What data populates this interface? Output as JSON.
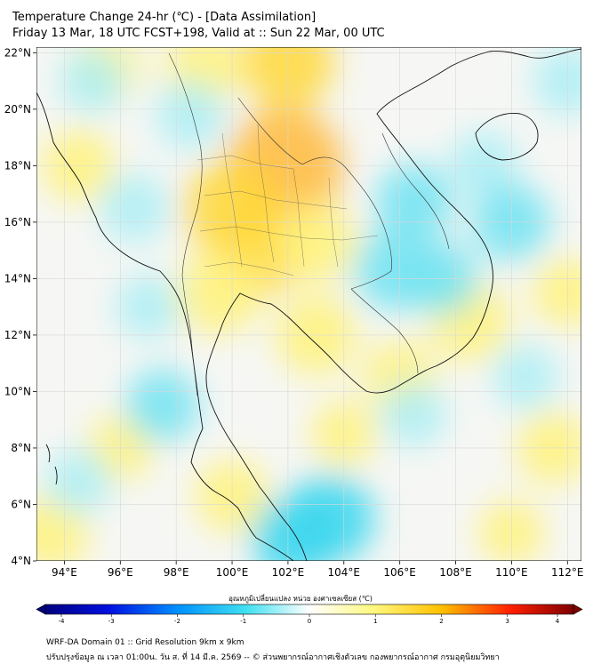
{
  "header": {
    "title_line1": "Temperature Change 24-hr (℃) - [Data Assimilation]",
    "title_line2": "Friday 13 Mar, 18 UTC FCST+198, Valid at :: Sun 22 Mar, 00 UTC"
  },
  "map": {
    "lon_range": [
      93,
      112.5
    ],
    "lat_range": [
      4,
      22.2
    ],
    "lat_ticks": [
      {
        "value": 22,
        "label": "22°N"
      },
      {
        "value": 20,
        "label": "20°N"
      },
      {
        "value": 18,
        "label": "18°N"
      },
      {
        "value": 16,
        "label": "16°N"
      },
      {
        "value": 14,
        "label": "14°N"
      },
      {
        "value": 12,
        "label": "12°N"
      },
      {
        "value": 10,
        "label": "10°N"
      },
      {
        "value": 8,
        "label": "8°N"
      },
      {
        "value": 6,
        "label": "6°N"
      },
      {
        "value": 4,
        "label": "4°N"
      }
    ],
    "lon_ticks": [
      {
        "value": 94,
        "label": "94°E"
      },
      {
        "value": 96,
        "label": "96°E"
      },
      {
        "value": 98,
        "label": "98°E"
      },
      {
        "value": 100,
        "label": "100°E"
      },
      {
        "value": 102,
        "label": "102°E"
      },
      {
        "value": 104,
        "label": "104°E"
      },
      {
        "value": 106,
        "label": "106°E"
      },
      {
        "value": 108,
        "label": "108°E"
      },
      {
        "value": 110,
        "label": "110°E"
      },
      {
        "value": 112,
        "label": "112°E"
      }
    ],
    "blobs": [
      {
        "lon": 101.9,
        "lat": 18.0,
        "value": 1.7
      },
      {
        "lon": 100.0,
        "lat": 16.5,
        "value": 1.2
      },
      {
        "lon": 101.0,
        "lat": 15.0,
        "value": 1.0
      },
      {
        "lon": 99.5,
        "lat": 13.5,
        "value": 0.9
      },
      {
        "lon": 103.0,
        "lat": 15.3,
        "value": 0.8
      },
      {
        "lon": 103.0,
        "lat": 12.0,
        "value": 0.8
      },
      {
        "lon": 102.0,
        "lat": 21.7,
        "value": 1.1
      },
      {
        "lon": 99.0,
        "lat": 21.5,
        "value": 0.7
      },
      {
        "lon": 94.5,
        "lat": 18.0,
        "value": 0.6
      },
      {
        "lon": 95.5,
        "lat": 21.5,
        "value": 0.5
      },
      {
        "lon": 108.5,
        "lat": 12.5,
        "value": 0.8
      },
      {
        "lon": 106.0,
        "lat": 10.5,
        "value": 0.6
      },
      {
        "lon": 112.0,
        "lat": 13.5,
        "value": 0.5
      },
      {
        "lon": 111.5,
        "lat": 8.0,
        "value": 0.6
      },
      {
        "lon": 100.0,
        "lat": 6.3,
        "value": 0.6
      },
      {
        "lon": 93.5,
        "lat": 5.0,
        "value": 0.7
      },
      {
        "lon": 96.0,
        "lat": 8.0,
        "value": 0.4
      },
      {
        "lon": 104.0,
        "lat": 8.5,
        "value": 0.4
      },
      {
        "lon": 110.0,
        "lat": 5.0,
        "value": 0.4
      },
      {
        "lon": 109.0,
        "lat": 18.0,
        "value": -0.5
      },
      {
        "lon": 106.5,
        "lat": 16.7,
        "value": -0.7
      },
      {
        "lon": 110.0,
        "lat": 16.0,
        "value": -0.7
      },
      {
        "lon": 105.8,
        "lat": 14.3,
        "value": -0.8
      },
      {
        "lon": 107.5,
        "lat": 14.0,
        "value": -0.6
      },
      {
        "lon": 103.5,
        "lat": 5.5,
        "value": -1.0
      },
      {
        "lon": 102.2,
        "lat": 4.8,
        "value": -0.9
      },
      {
        "lon": 97.0,
        "lat": 13.0,
        "value": -0.4
      },
      {
        "lon": 97.5,
        "lat": 9.5,
        "value": -0.6
      },
      {
        "lon": 94.5,
        "lat": 6.8,
        "value": -0.4
      },
      {
        "lon": 98.5,
        "lat": 19.8,
        "value": -0.5
      },
      {
        "lon": 96.5,
        "lat": 16.5,
        "value": -0.5
      },
      {
        "lon": 95.0,
        "lat": 21.0,
        "value": -0.4
      },
      {
        "lon": 106.5,
        "lat": 9.2,
        "value": -0.4
      },
      {
        "lon": 110.5,
        "lat": 10.5,
        "value": -0.4
      },
      {
        "lon": 112.0,
        "lat": 21.0,
        "value": -0.5
      }
    ]
  },
  "colorbar": {
    "title": "อุณหภูมิเปลี่ยนแปลง หน่วย องศาเซลเซียส (℃)",
    "ticks": [
      "-4",
      "-3",
      "-2",
      "-1",
      "0",
      "1",
      "2",
      "3",
      "4"
    ],
    "range": [
      -4,
      4
    ]
  },
  "footer": {
    "line1": "WRF-DA Domain 01 :: Grid Resolution 9km x 9km",
    "line2": "ปรับปรุงข้อมูล ณ เวลา 01:00น. วัน ส. ที่ 14 มี.ค. 2569 -- © ส่วนพยากรณ์อากาศเชิงตัวเลข กองพยากรณ์อากาศ กรมอุตุนิยมวิทยา"
  }
}
